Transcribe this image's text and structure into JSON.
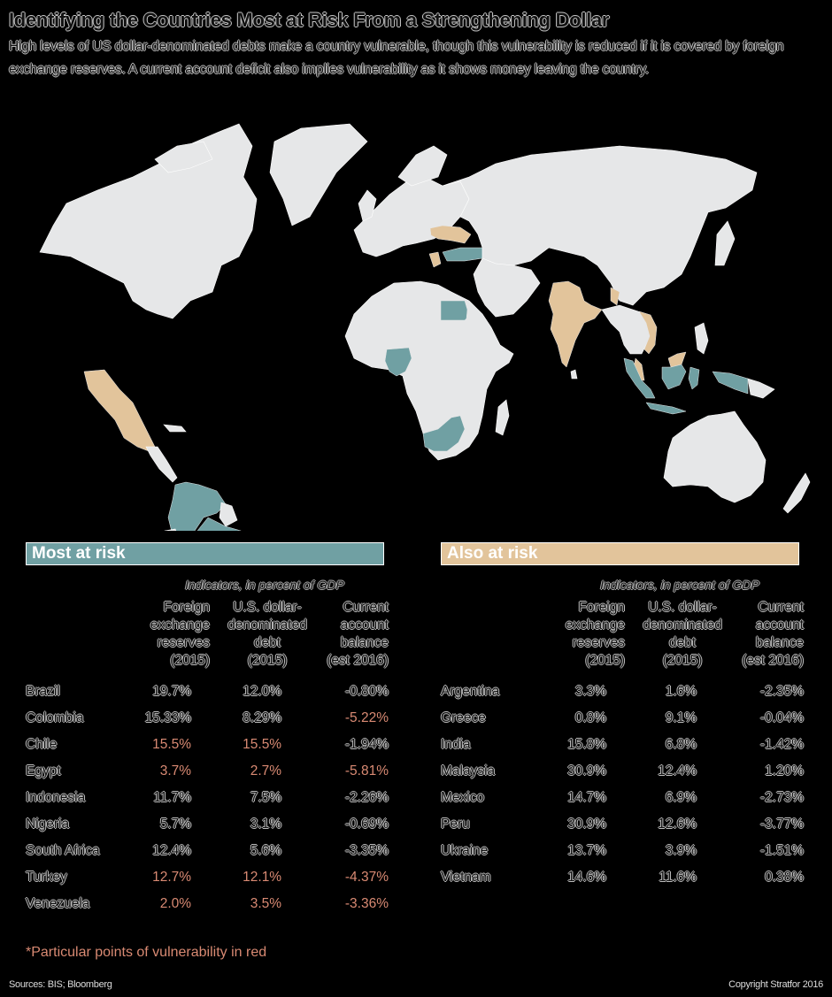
{
  "header": {
    "title": "Identifying the Countries Most at Risk From a Strengthening Dollar",
    "subtitle": "High levels of US dollar-denominated debts make a country vulnerable, though this vulnerability is reduced if it is covered by foreign exchange reserves. A current account deficit also implies vulnerability as it shows money leaving the country."
  },
  "legend": {
    "most_at_risk": {
      "label": "Most at risk",
      "color": "#70a0a3"
    },
    "also_at_risk": {
      "label": "Also at risk",
      "color": "#e2c49b"
    },
    "land_color": "#e6e7e8",
    "highlight_red": "#d98a73"
  },
  "map": {
    "most_at_risk_countries": [
      "Brazil",
      "Colombia",
      "Chile",
      "Egypt",
      "Indonesia",
      "Nigeria",
      "South Africa",
      "Turkey",
      "Venezuela"
    ],
    "also_at_risk_countries": [
      "Argentina",
      "Greece",
      "India",
      "Malaysia",
      "Mexico",
      "Peru",
      "Ukraine",
      "Vietnam"
    ]
  },
  "tables": {
    "most": {
      "heading": "Most at risk",
      "indicators_caption": "Indicators, in percent of GDP",
      "columns": [
        "Foreign\nexchange\nreserves\n(2015)",
        "U.S. dollar-\ndenominated\ndebt\n(2015)",
        "Current\naccount\nbalance\n(est 2016)"
      ],
      "rows": [
        {
          "country": "Brazil",
          "fx": "19.7%",
          "debt": "12.0%",
          "ca": "-0.80%",
          "red": [
            false,
            false,
            false
          ]
        },
        {
          "country": "Colombia",
          "fx": "15.33%",
          "debt": "8.29%",
          "ca": "-5.22%",
          "red": [
            false,
            false,
            true
          ]
        },
        {
          "country": "Chile",
          "fx": "15.5%",
          "debt": "15.5%",
          "ca": "-1.94%",
          "red": [
            true,
            true,
            false
          ]
        },
        {
          "country": "Egypt",
          "fx": "3.7%",
          "debt": "2.7%",
          "ca": "-5.81%",
          "red": [
            true,
            true,
            true
          ]
        },
        {
          "country": "Indonesia",
          "fx": "11.7%",
          "debt": "7.5%",
          "ca": "-2.26%",
          "red": [
            false,
            false,
            false
          ]
        },
        {
          "country": "Nigeria",
          "fx": "5.7%",
          "debt": "3.1%",
          "ca": "-0.69%",
          "red": [
            false,
            false,
            false
          ]
        },
        {
          "country": "South Africa",
          "fx": "12.4%",
          "debt": "5.6%",
          "ca": "-3.35%",
          "red": [
            false,
            false,
            false
          ]
        },
        {
          "country": "Turkey",
          "fx": "12.7%",
          "debt": "12.1%",
          "ca": "-4.37%",
          "red": [
            true,
            true,
            true
          ]
        },
        {
          "country": "Venezuela",
          "fx": "2.0%",
          "debt": "3.5%",
          "ca": "-3.36%",
          "red": [
            true,
            true,
            true
          ]
        }
      ]
    },
    "also": {
      "heading": "Also at risk",
      "indicators_caption": "Indicators, in percent of GDP",
      "columns": [
        "Foreign\nexchange\nreserves\n(2015)",
        "U.S. dollar-\ndenominated\ndebt\n(2015)",
        "Current\naccount\nbalance\n(est 2016)"
      ],
      "rows": [
        {
          "country": "Argentina",
          "fx": "3.3%",
          "debt": "1.6%",
          "ca": "-2.35%",
          "red": [
            false,
            false,
            false
          ]
        },
        {
          "country": "Greece",
          "fx": "0.8%",
          "debt": "9.1%",
          "ca": "-0.04%",
          "red": [
            false,
            false,
            false
          ]
        },
        {
          "country": "India",
          "fx": "15.8%",
          "debt": "6.8%",
          "ca": "-1.42%",
          "red": [
            false,
            false,
            false
          ]
        },
        {
          "country": "Malaysia",
          "fx": "30.9%",
          "debt": "12.4%",
          "ca": "1.20%",
          "red": [
            false,
            false,
            false
          ]
        },
        {
          "country": "Mexico",
          "fx": "14.7%",
          "debt": "6.9%",
          "ca": "-2.73%",
          "red": [
            false,
            false,
            false
          ]
        },
        {
          "country": "Peru",
          "fx": "30.9%",
          "debt": "12.6%",
          "ca": "-3.77%",
          "red": [
            false,
            false,
            false
          ]
        },
        {
          "country": "Ukraine",
          "fx": "13.7%",
          "debt": "3.9%",
          "ca": "-1.51%",
          "red": [
            false,
            false,
            false
          ]
        },
        {
          "country": "Vietnam",
          "fx": "14.6%",
          "debt": "11.6%",
          "ca": "0.38%",
          "red": [
            false,
            false,
            false
          ]
        }
      ]
    }
  },
  "footer": {
    "note": "*Particular points of vulnerability in red",
    "sources": "Sources: BIS; Bloomberg",
    "copyright": "Copyright Stratfor 2016"
  }
}
